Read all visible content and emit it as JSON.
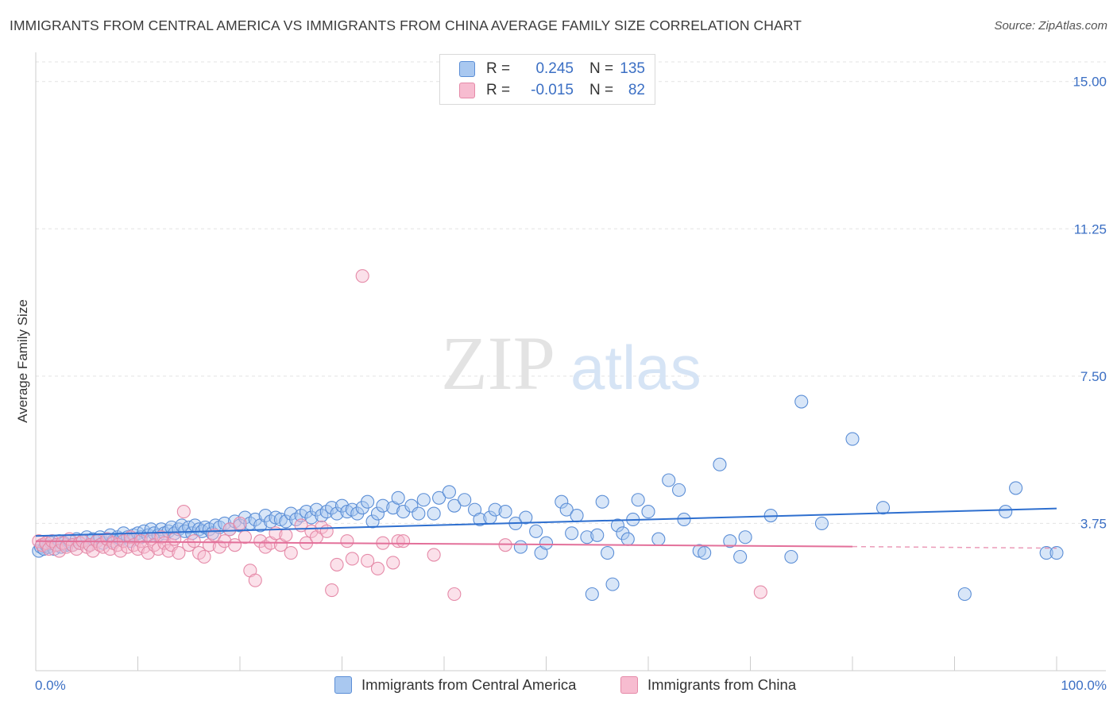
{
  "title": "IMMIGRANTS FROM CENTRAL AMERICA VS IMMIGRANTS FROM CHINA AVERAGE FAMILY SIZE CORRELATION CHART",
  "source": "Source: ZipAtlas.com",
  "watermark": {
    "zip": "ZIP",
    "atlas": "atlas"
  },
  "legend": {
    "rows": [
      {
        "r_label": "R =",
        "r_value": "0.245",
        "n_label": "N =",
        "n_value": "135",
        "color": "#a9c8f0",
        "border": "#5b8ed6"
      },
      {
        "r_label": "R =",
        "r_value": "-0.015",
        "n_label": "N =",
        "n_value": "82",
        "color": "#f7bcd0",
        "border": "#e58aa8"
      }
    ]
  },
  "bottom_legend": [
    {
      "label": "Immigrants from Central America",
      "color": "#a9c8f0",
      "border": "#5b8ed6"
    },
    {
      "label": "Immigrants from China",
      "color": "#f7bcd0",
      "border": "#e58aa8"
    }
  ],
  "chart_data": {
    "type": "scatter",
    "ylabel": "Average Family Size",
    "xlim": [
      0,
      100
    ],
    "ylim": [
      0,
      15.5
    ],
    "x_tick_labels": [
      "0.0%",
      "100.0%"
    ],
    "y_ticks": [
      3.75,
      7.5,
      11.25,
      15.0
    ],
    "y_tick_labels": [
      "3.75",
      "7.50",
      "11.25",
      "15.00"
    ],
    "grid": true,
    "series": [
      {
        "name": "Immigrants from Central America",
        "color": "#5b8ed6",
        "fill": "#a9c8f0",
        "line_color": "#2e6fcf",
        "trend": {
          "x": [
            0,
            100
          ],
          "y": [
            3.43,
            4.13
          ]
        },
        "points": [
          [
            0.3,
            3.05
          ],
          [
            0.5,
            3.15
          ],
          [
            0.8,
            3.1
          ],
          [
            1,
            3.2
          ],
          [
            1.2,
            3.15
          ],
          [
            1.5,
            3.25
          ],
          [
            1.8,
            3.1
          ],
          [
            2,
            3.2
          ],
          [
            2.3,
            3.3
          ],
          [
            2.5,
            3.15
          ],
          [
            2.8,
            3.25
          ],
          [
            3,
            3.2
          ],
          [
            3.3,
            3.3
          ],
          [
            3.6,
            3.2
          ],
          [
            4,
            3.35
          ],
          [
            4.3,
            3.25
          ],
          [
            4.6,
            3.3
          ],
          [
            5,
            3.4
          ],
          [
            5.3,
            3.2
          ],
          [
            5.6,
            3.35
          ],
          [
            6,
            3.3
          ],
          [
            6.3,
            3.4
          ],
          [
            6.6,
            3.25
          ],
          [
            7,
            3.35
          ],
          [
            7.3,
            3.45
          ],
          [
            7.6,
            3.3
          ],
          [
            8,
            3.4
          ],
          [
            8.3,
            3.35
          ],
          [
            8.6,
            3.5
          ],
          [
            9,
            3.4
          ],
          [
            9.3,
            3.3
          ],
          [
            9.6,
            3.45
          ],
          [
            10,
            3.5
          ],
          [
            10.3,
            3.4
          ],
          [
            10.6,
            3.55
          ],
          [
            11,
            3.45
          ],
          [
            11.3,
            3.6
          ],
          [
            11.6,
            3.5
          ],
          [
            12,
            3.45
          ],
          [
            12.3,
            3.6
          ],
          [
            12.6,
            3.5
          ],
          [
            13,
            3.55
          ],
          [
            13.3,
            3.65
          ],
          [
            13.6,
            3.5
          ],
          [
            14,
            3.6
          ],
          [
            14.3,
            3.7
          ],
          [
            14.6,
            3.55
          ],
          [
            15,
            3.65
          ],
          [
            15.3,
            3.5
          ],
          [
            15.6,
            3.7
          ],
          [
            16,
            3.6
          ],
          [
            16.3,
            3.55
          ],
          [
            16.6,
            3.65
          ],
          [
            17,
            3.6
          ],
          [
            17.3,
            3.5
          ],
          [
            17.6,
            3.7
          ],
          [
            18,
            3.65
          ],
          [
            18.5,
            3.75
          ],
          [
            19,
            3.6
          ],
          [
            19.5,
            3.8
          ],
          [
            20,
            3.7
          ],
          [
            20.5,
            3.9
          ],
          [
            21,
            3.75
          ],
          [
            21.5,
            3.85
          ],
          [
            22,
            3.7
          ],
          [
            22.5,
            3.95
          ],
          [
            23,
            3.8
          ],
          [
            23.5,
            3.9
          ],
          [
            24,
            3.85
          ],
          [
            24.5,
            3.8
          ],
          [
            25,
            4.0
          ],
          [
            25.5,
            3.85
          ],
          [
            26,
            3.95
          ],
          [
            26.5,
            4.05
          ],
          [
            27,
            3.9
          ],
          [
            27.5,
            4.1
          ],
          [
            28,
            3.95
          ],
          [
            28.5,
            4.05
          ],
          [
            29,
            4.15
          ],
          [
            29.5,
            4.0
          ],
          [
            30,
            4.2
          ],
          [
            30.5,
            4.05
          ],
          [
            31,
            4.1
          ],
          [
            31.5,
            4.0
          ],
          [
            32,
            4.15
          ],
          [
            32.5,
            4.3
          ],
          [
            33,
            3.8
          ],
          [
            33.5,
            4.0
          ],
          [
            34,
            4.2
          ],
          [
            35,
            4.15
          ],
          [
            35.5,
            4.4
          ],
          [
            36,
            4.05
          ],
          [
            36.8,
            4.2
          ],
          [
            37.5,
            4.0
          ],
          [
            38,
            4.35
          ],
          [
            39,
            4.0
          ],
          [
            39.5,
            4.4
          ],
          [
            40.5,
            4.55
          ],
          [
            41,
            4.2
          ],
          [
            42,
            4.35
          ],
          [
            43,
            4.1
          ],
          [
            43.5,
            3.85
          ],
          [
            44.5,
            3.9
          ],
          [
            45,
            4.1
          ],
          [
            46,
            4.05
          ],
          [
            47,
            3.75
          ],
          [
            47.5,
            3.15
          ],
          [
            48,
            3.9
          ],
          [
            49,
            3.55
          ],
          [
            49.5,
            3.0
          ],
          [
            50,
            3.25
          ],
          [
            51.5,
            4.3
          ],
          [
            52,
            4.1
          ],
          [
            52.5,
            3.5
          ],
          [
            53,
            3.95
          ],
          [
            54,
            3.4
          ],
          [
            54.5,
            1.95
          ],
          [
            55,
            3.45
          ],
          [
            55.5,
            4.3
          ],
          [
            56,
            3.0
          ],
          [
            56.5,
            2.2
          ],
          [
            57,
            3.7
          ],
          [
            57.5,
            3.5
          ],
          [
            58,
            3.35
          ],
          [
            58.5,
            3.85
          ],
          [
            59,
            4.35
          ],
          [
            60,
            4.05
          ],
          [
            61,
            3.35
          ],
          [
            62,
            4.85
          ],
          [
            63,
            4.6
          ],
          [
            63.5,
            3.85
          ],
          [
            65,
            3.05
          ],
          [
            65.5,
            3.0
          ],
          [
            67,
            5.25
          ],
          [
            68,
            3.3
          ],
          [
            69,
            2.9
          ],
          [
            69.5,
            3.4
          ],
          [
            72,
            3.95
          ],
          [
            74,
            2.9
          ],
          [
            75,
            6.85
          ],
          [
            77,
            3.75
          ],
          [
            80,
            5.9
          ],
          [
            83,
            4.15
          ],
          [
            91,
            1.95
          ],
          [
            95,
            4.05
          ],
          [
            96,
            4.65
          ],
          [
            99,
            3.0
          ],
          [
            100,
            3.0
          ]
        ]
      },
      {
        "name": "Immigrants from China",
        "color": "#e58aa8",
        "fill": "#f7bcd0",
        "line_color": "#e3709a",
        "trend": {
          "x": [
            0,
            80
          ],
          "y": [
            3.3,
            3.16
          ]
        },
        "trend_dashed": {
          "x": [
            80,
            100
          ],
          "y": [
            3.16,
            3.12
          ]
        },
        "points": [
          [
            0.3,
            3.3
          ],
          [
            0.6,
            3.2
          ],
          [
            1,
            3.25
          ],
          [
            1.3,
            3.1
          ],
          [
            1.6,
            3.3
          ],
          [
            2,
            3.2
          ],
          [
            2.3,
            3.05
          ],
          [
            2.6,
            3.25
          ],
          [
            3,
            3.15
          ],
          [
            3.3,
            3.35
          ],
          [
            3.6,
            3.2
          ],
          [
            4,
            3.1
          ],
          [
            4.3,
            3.25
          ],
          [
            4.6,
            3.3
          ],
          [
            5,
            3.15
          ],
          [
            5.3,
            3.2
          ],
          [
            5.6,
            3.05
          ],
          [
            6,
            3.3
          ],
          [
            6.3,
            3.2
          ],
          [
            6.6,
            3.15
          ],
          [
            7,
            3.35
          ],
          [
            7.3,
            3.1
          ],
          [
            7.6,
            3.25
          ],
          [
            8,
            3.2
          ],
          [
            8.3,
            3.05
          ],
          [
            8.6,
            3.3
          ],
          [
            9,
            3.15
          ],
          [
            9.3,
            3.4
          ],
          [
            9.6,
            3.2
          ],
          [
            10,
            3.1
          ],
          [
            10.3,
            3.3
          ],
          [
            10.6,
            3.15
          ],
          [
            11,
            3.0
          ],
          [
            11.3,
            3.35
          ],
          [
            11.6,
            3.2
          ],
          [
            12,
            3.1
          ],
          [
            12.3,
            3.4
          ],
          [
            12.6,
            3.25
          ],
          [
            13,
            3.05
          ],
          [
            13.3,
            3.2
          ],
          [
            13.6,
            3.35
          ],
          [
            14,
            3.0
          ],
          [
            14.5,
            4.05
          ],
          [
            15,
            3.2
          ],
          [
            15.5,
            3.3
          ],
          [
            16,
            3.0
          ],
          [
            16.5,
            2.9
          ],
          [
            17,
            3.2
          ],
          [
            17.5,
            3.45
          ],
          [
            18,
            3.15
          ],
          [
            18.5,
            3.3
          ],
          [
            19,
            3.6
          ],
          [
            19.5,
            3.2
          ],
          [
            20,
            3.75
          ],
          [
            20.5,
            3.4
          ],
          [
            21,
            2.55
          ],
          [
            21.5,
            2.3
          ],
          [
            22,
            3.3
          ],
          [
            22.5,
            3.15
          ],
          [
            23,
            3.25
          ],
          [
            23.5,
            3.5
          ],
          [
            24,
            3.2
          ],
          [
            24.5,
            3.45
          ],
          [
            25,
            3.0
          ],
          [
            26,
            3.7
          ],
          [
            26.5,
            3.25
          ],
          [
            27,
            3.55
          ],
          [
            27.5,
            3.4
          ],
          [
            28,
            3.65
          ],
          [
            28.5,
            3.55
          ],
          [
            29,
            2.05
          ],
          [
            29.5,
            2.7
          ],
          [
            30.5,
            3.3
          ],
          [
            31,
            2.85
          ],
          [
            32,
            10.05
          ],
          [
            32.5,
            2.8
          ],
          [
            33.5,
            2.6
          ],
          [
            34,
            3.25
          ],
          [
            35,
            2.75
          ],
          [
            35.5,
            3.3
          ],
          [
            36,
            3.3
          ],
          [
            39,
            2.95
          ],
          [
            41,
            1.95
          ],
          [
            46,
            3.2
          ],
          [
            71,
            2.0
          ]
        ]
      }
    ]
  }
}
